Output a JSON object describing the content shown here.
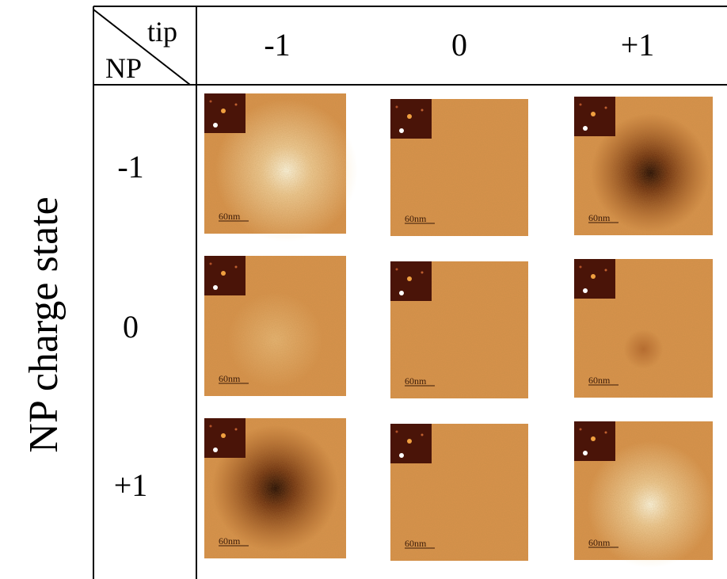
{
  "axis_label": "NP charge state",
  "corner": {
    "tip": "tip",
    "np": "NP"
  },
  "columns": [
    "-1",
    "0",
    "+1"
  ],
  "rows": [
    "-1",
    "0",
    "+1"
  ],
  "panels": [
    [
      {
        "scale_bar": "60nm"
      },
      {
        "scale_bar": "60nm"
      },
      {
        "scale_bar": "60nm"
      }
    ],
    [
      {
        "scale_bar": "60nm"
      },
      {
        "scale_bar": "60nm"
      },
      {
        "scale_bar": "60nm"
      }
    ],
    [
      {
        "scale_bar": "60nm"
      },
      {
        "scale_bar": "60nm"
      },
      {
        "scale_bar": "60nm"
      }
    ]
  ]
}
